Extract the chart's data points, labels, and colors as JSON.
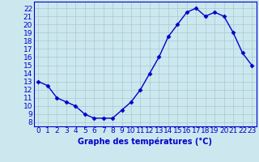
{
  "x": [
    0,
    1,
    2,
    3,
    4,
    5,
    6,
    7,
    8,
    9,
    10,
    11,
    12,
    13,
    14,
    15,
    16,
    17,
    18,
    19,
    20,
    21,
    22,
    23
  ],
  "y": [
    13,
    12.5,
    11,
    10.5,
    10,
    9,
    8.5,
    8.5,
    8.5,
    9.5,
    10.5,
    12,
    14,
    16,
    18.5,
    20,
    21.5,
    22,
    21,
    21.5,
    21,
    19,
    16.5,
    15
  ],
  "line_color": "#0000cc",
  "marker": "D",
  "marker_size": 2.5,
  "bg_color": "#cce8ee",
  "grid_color": "#aac8d4",
  "xlabel": "Graphe des températures (°C)",
  "xlabel_color": "#0000cc",
  "xlabel_fontsize": 7,
  "ylabel_ticks": [
    8,
    9,
    10,
    11,
    12,
    13,
    14,
    15,
    16,
    17,
    18,
    19,
    20,
    21,
    22
  ],
  "ylim": [
    7.5,
    22.8
  ],
  "xlim": [
    -0.5,
    23.5
  ],
  "tick_color": "#0000cc",
  "tick_fontsize": 6.5,
  "linewidth": 1.0
}
